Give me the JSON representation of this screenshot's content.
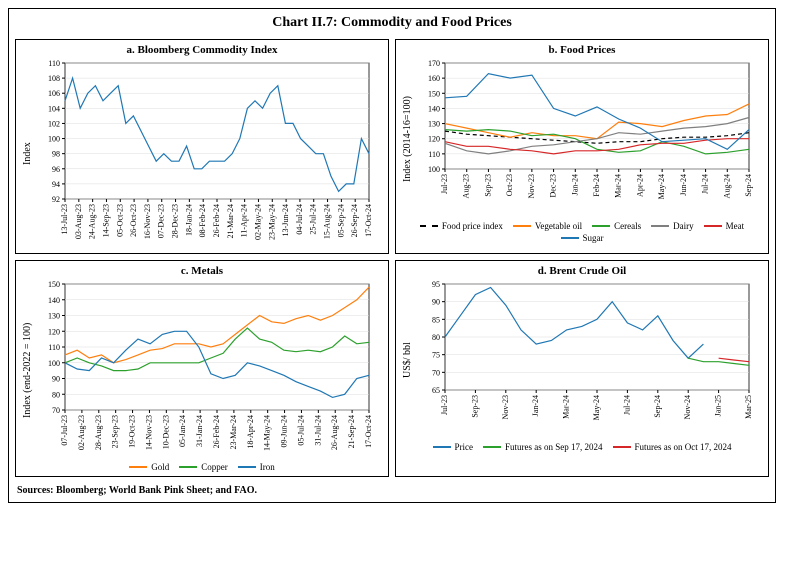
{
  "title": "Chart II.7: Commodity and Food Prices",
  "sources": "Sources: Bloomberg; World Bank Pink Sheet; and FAO.",
  "colors": {
    "blue": "#1f77b4",
    "orange": "#ff7f0e",
    "green": "#2ca02c",
    "red": "#d62728",
    "gray": "#7f7f7f",
    "black": "#000000",
    "grid": "#dddddd",
    "bg": "#ffffff"
  },
  "panelA": {
    "title": "a. Bloomberg Commodity Index",
    "ylabel": "Index",
    "ylim": [
      92,
      110
    ],
    "ytick_step": 2,
    "xticks": [
      "13-Jul-23",
      "03-Aug-23",
      "24-Aug-23",
      "14-Sep-23",
      "05-Oct-23",
      "26-Oct-23",
      "16-Nov-23",
      "07-Dec-23",
      "28-Dec-23",
      "18-Jan-24",
      "08-Feb-24",
      "26-Feb-24",
      "21-Mar-24",
      "11-Apr-24",
      "02-May-24",
      "23-May-24",
      "13-Jun-24",
      "04-Jul-24",
      "25-Jul-24",
      "15-Aug-24",
      "05-Sep-24",
      "26-Sep-24",
      "17-Oct-24"
    ],
    "series": [
      {
        "name": "Index",
        "color": "#1f77b4",
        "values": [
          105,
          108,
          104,
          106,
          107,
          105,
          106,
          107,
          102,
          103,
          101,
          99,
          97,
          98,
          97,
          97,
          99,
          96,
          96,
          97,
          97,
          97,
          98,
          100,
          104,
          105,
          104,
          106,
          107,
          102,
          102,
          100,
          99,
          98,
          98,
          95,
          93,
          94,
          94,
          100,
          98
        ]
      }
    ]
  },
  "panelB": {
    "title": "b. Food Prices",
    "ylabel": "Index (2014-16=100)",
    "ylim": [
      100,
      170
    ],
    "ytick_step": 10,
    "xticks": [
      "Jul-23",
      "Aug-23",
      "Sep-23",
      "Oct-23",
      "Nov-23",
      "Dec-23",
      "Jan-24",
      "Feb-24",
      "Mar-24",
      "Apr-24",
      "May-24",
      "Jun-24",
      "Jul-24",
      "Aug-24",
      "Sep-24"
    ],
    "series": [
      {
        "name": "Food price index",
        "color": "#000000",
        "dashed": true,
        "values": [
          125,
          123,
          122,
          121,
          120,
          119,
          118,
          117,
          118,
          118,
          120,
          121,
          121,
          122,
          124
        ]
      },
      {
        "name": "Vegetable oil",
        "color": "#ff7f0e",
        "values": [
          130,
          127,
          124,
          121,
          124,
          122,
          122,
          120,
          131,
          130,
          128,
          132,
          135,
          136,
          143
        ]
      },
      {
        "name": "Cereals",
        "color": "#2ca02c",
        "values": [
          126,
          125,
          126,
          125,
          122,
          123,
          120,
          113,
          111,
          112,
          118,
          115,
          110,
          111,
          113
        ]
      },
      {
        "name": "Dairy",
        "color": "#7f7f7f",
        "values": [
          117,
          112,
          110,
          112,
          115,
          116,
          118,
          120,
          124,
          123,
          125,
          127,
          128,
          130,
          134
        ]
      },
      {
        "name": "Meat",
        "color": "#d62728",
        "values": [
          118,
          115,
          115,
          113,
          112,
          110,
          112,
          112,
          113,
          116,
          117,
          117,
          119,
          120,
          120
        ]
      },
      {
        "name": "Sugar",
        "color": "#1f77b4",
        "values": [
          147,
          148,
          163,
          160,
          162,
          140,
          135,
          141,
          133,
          127,
          118,
          119,
          120,
          113,
          126
        ]
      }
    ],
    "legend_layout": [
      [
        "Food price index",
        "Vegetable oil",
        "Cereals"
      ],
      [
        "Dairy",
        "Meat",
        "Sugar"
      ]
    ]
  },
  "panelC": {
    "title": "c. Metals",
    "ylabel": "Index (end-2022 = 100)",
    "ylim": [
      70,
      150
    ],
    "ytick_step": 10,
    "xticks": [
      "07-Jul-23",
      "02-Aug-23",
      "28-Aug-23",
      "23-Sep-23",
      "19-Oct-23",
      "14-Nov-23",
      "10-Dec-23",
      "05-Jan-24",
      "31-Jan-24",
      "26-Feb-24",
      "23-Mar-24",
      "18-Apr-24",
      "14-May-24",
      "09-Jun-24",
      "05-Jul-24",
      "31-Jul-24",
      "26-Aug-24",
      "21-Sep-24",
      "17-Oct-24"
    ],
    "series": [
      {
        "name": "Gold",
        "color": "#ff7f0e",
        "values": [
          105,
          108,
          103,
          105,
          100,
          102,
          105,
          108,
          109,
          112,
          112,
          112,
          110,
          112,
          118,
          124,
          130,
          126,
          125,
          128,
          130,
          127,
          130,
          135,
          140,
          148
        ]
      },
      {
        "name": "Copper",
        "color": "#2ca02c",
        "values": [
          100,
          103,
          100,
          98,
          95,
          95,
          96,
          100,
          100,
          100,
          100,
          100,
          103,
          106,
          115,
          122,
          115,
          113,
          108,
          107,
          108,
          107,
          110,
          117,
          112,
          113
        ]
      },
      {
        "name": "Iron",
        "color": "#1f77b4",
        "values": [
          100,
          96,
          95,
          103,
          100,
          108,
          115,
          112,
          118,
          120,
          120,
          110,
          93,
          90,
          92,
          100,
          98,
          95,
          92,
          88,
          85,
          82,
          78,
          80,
          90,
          92
        ]
      }
    ]
  },
  "panelD": {
    "title": "d. Brent Crude Oil",
    "ylabel": "US$/ bbl",
    "ylim": [
      65,
      95
    ],
    "ytick_step": 5,
    "xticks": [
      "Jul-23",
      "Sep-23",
      "Nov-23",
      "Jan-24",
      "Mar-24",
      "May-24",
      "Jul-24",
      "Sep-24",
      "Nov-24",
      "Jan-25",
      "Mar-25"
    ],
    "series": [
      {
        "name": "Price",
        "color": "#1f77b4",
        "values": [
          80,
          86,
          92,
          94,
          89,
          82,
          78,
          79,
          82,
          83,
          85,
          90,
          84,
          82,
          86,
          79,
          74,
          78,
          null,
          null,
          null
        ]
      },
      {
        "name": "Futures as on Sep 17, 2024",
        "color": "#2ca02c",
        "values": [
          null,
          null,
          null,
          null,
          null,
          null,
          null,
          null,
          null,
          null,
          null,
          null,
          null,
          null,
          null,
          null,
          74,
          73,
          73,
          72.5,
          72
        ]
      },
      {
        "name": "Futures as on Oct 17, 2024",
        "color": "#d62728",
        "values": [
          null,
          null,
          null,
          null,
          null,
          null,
          null,
          null,
          null,
          null,
          null,
          null,
          null,
          null,
          null,
          null,
          null,
          null,
          74,
          73.5,
          73
        ]
      }
    ],
    "legend_layout": [
      [
        "Price",
        "Futures as on Sep 17, 2024"
      ],
      [
        "Futures as on Oct 17, 2024"
      ]
    ]
  }
}
